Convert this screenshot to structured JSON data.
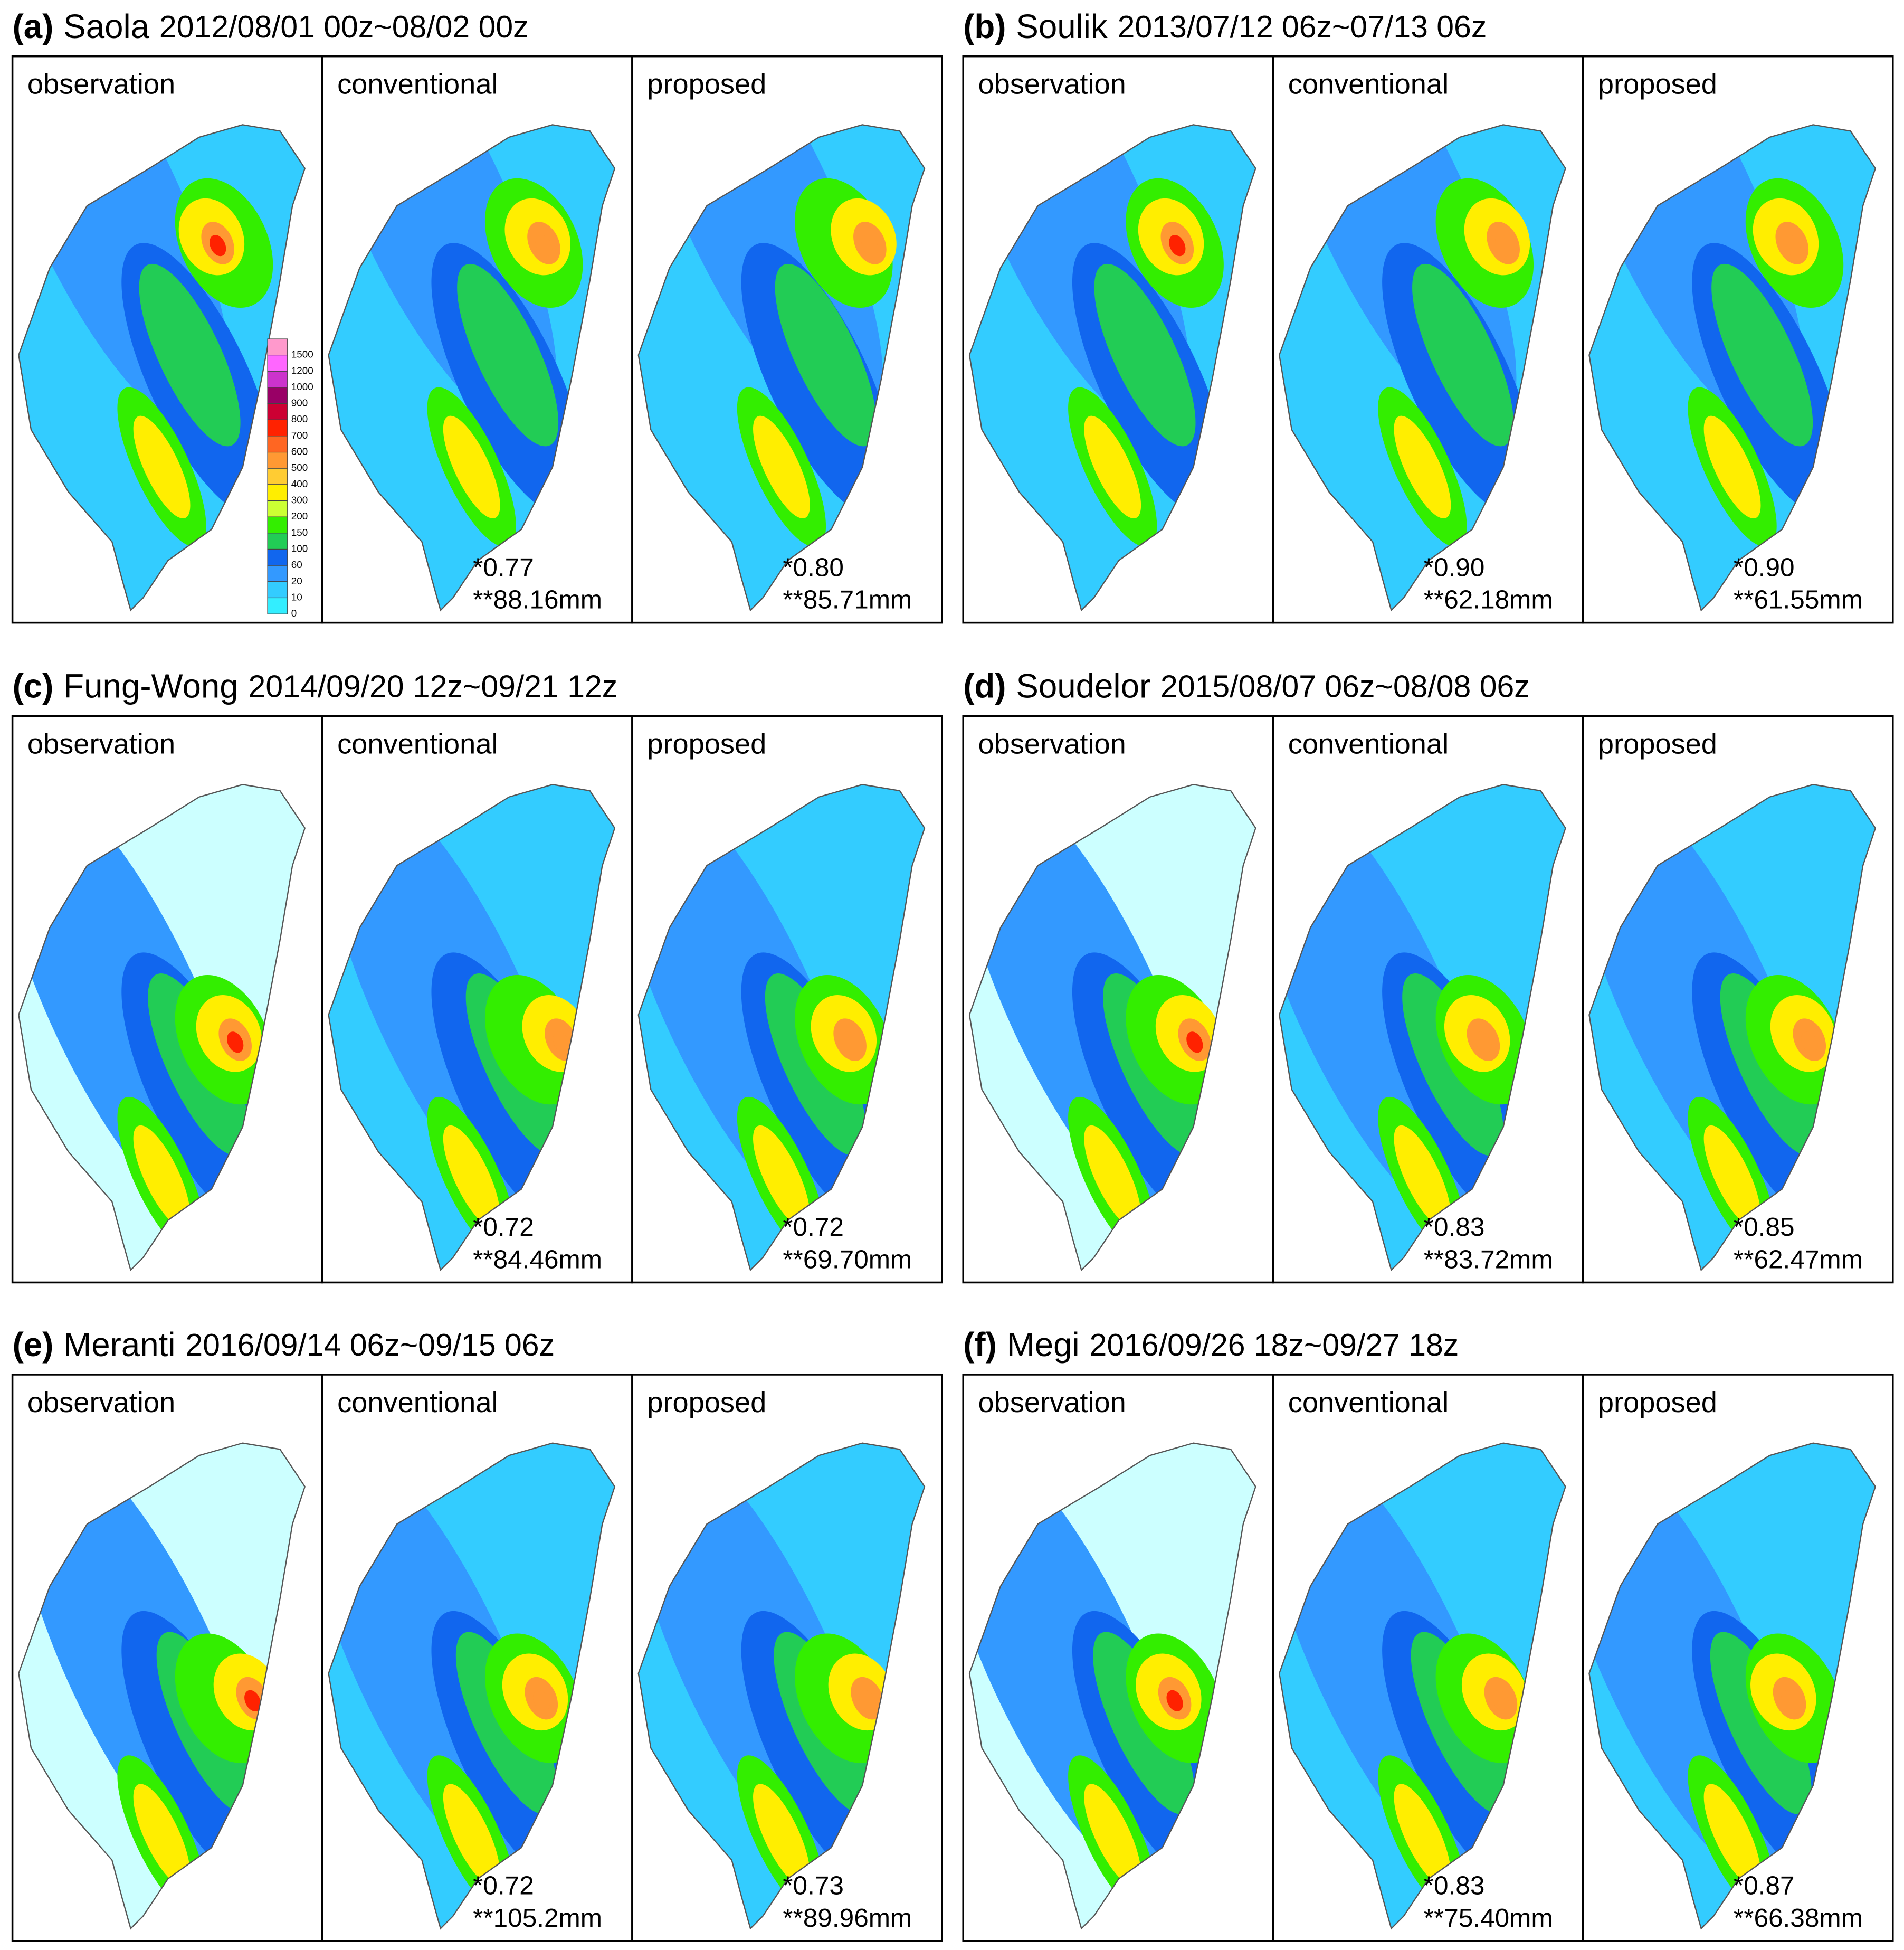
{
  "panels": [
    {
      "label": "(a)",
      "storm": "Saola",
      "period": "2012/08/01 00z~08/02 00z",
      "maps": [
        "observation",
        "conventional",
        "proposed"
      ],
      "scores": [
        {
          "corr": "*0.77",
          "rmse": "**88.16mm"
        },
        {
          "corr": "*0.80",
          "rmse": "**85.71mm"
        }
      ]
    },
    {
      "label": "(b)",
      "storm": "Soulik",
      "period": "2013/07/12 06z~07/13 06z",
      "maps": [
        "observation",
        "conventional",
        "proposed"
      ],
      "scores": [
        {
          "corr": "*0.90",
          "rmse": "**62.18mm"
        },
        {
          "corr": "*0.90",
          "rmse": "**61.55mm"
        }
      ]
    },
    {
      "label": "(c)",
      "storm": "Fung-Wong",
      "period": "2014/09/20 12z~09/21 12z",
      "maps": [
        "observation",
        "conventional",
        "proposed"
      ],
      "scores": [
        {
          "corr": "*0.72",
          "rmse": "**84.46mm"
        },
        {
          "corr": "*0.72",
          "rmse": "**69.70mm"
        }
      ]
    },
    {
      "label": "(d)",
      "storm": "Soudelor",
      "period": "2015/08/07 06z~08/08 06z",
      "maps": [
        "observation",
        "conventional",
        "proposed"
      ],
      "scores": [
        {
          "corr": "*0.83",
          "rmse": "**83.72mm"
        },
        {
          "corr": "*0.85",
          "rmse": "**62.47mm"
        }
      ]
    },
    {
      "label": "(e)",
      "storm": "Meranti",
      "period": "2016/09/14 06z~09/15 06z",
      "maps": [
        "observation",
        "conventional",
        "proposed"
      ],
      "scores": [
        {
          "corr": "*0.72",
          "rmse": "**105.2mm"
        },
        {
          "corr": "*0.73",
          "rmse": "**89.96mm"
        }
      ]
    },
    {
      "label": "(f)",
      "storm": "Megi",
      "period": "2016/09/26 18z~09/27 18z",
      "maps": [
        "observation",
        "conventional",
        "proposed"
      ],
      "scores": [
        {
          "corr": "*0.83",
          "rmse": "**75.40mm"
        },
        {
          "corr": "*0.87",
          "rmse": "**66.38mm"
        }
      ]
    }
  ],
  "legend": {
    "levels": [
      1500,
      1200,
      1000,
      900,
      800,
      700,
      600,
      500,
      400,
      300,
      200,
      150,
      100,
      60,
      20,
      10,
      0
    ]
  }
}
